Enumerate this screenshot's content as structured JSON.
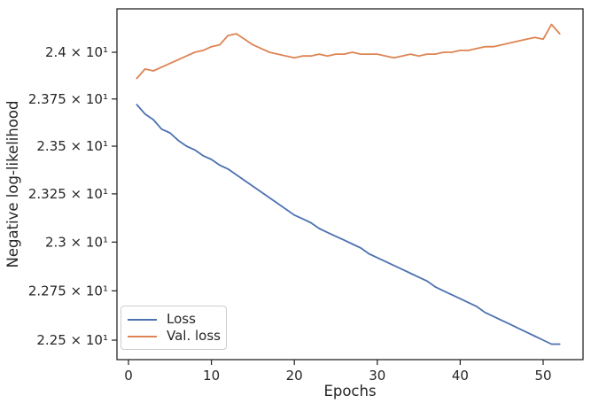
{
  "chart_data": {
    "type": "line",
    "title": "",
    "xlabel": "Epochs",
    "ylabel": "Negative log-likelihood",
    "grid": false,
    "legend_position": "lower left",
    "x_axis": {
      "lim": [
        -1.4,
        54.8
      ],
      "tick_values": [
        0,
        10,
        20,
        30,
        40,
        50
      ],
      "tick_labels": [
        "0",
        "10",
        "20",
        "30",
        "40",
        "50"
      ]
    },
    "y_axis": {
      "scale": "log",
      "lim": [
        22.4,
        24.23
      ],
      "tick_values": [
        24.0,
        23.75,
        23.5,
        23.25,
        23.0,
        22.75,
        22.5
      ],
      "tick_labels": [
        "2.4 × 10¹",
        "2.375 × 10¹",
        "2.35 × 10¹",
        "2.325 × 10¹",
        "2.3 × 10¹",
        "2.275 × 10¹",
        "2.25 × 10¹"
      ]
    },
    "x": [
      1,
      2,
      3,
      4,
      5,
      6,
      7,
      8,
      9,
      10,
      11,
      12,
      13,
      14,
      15,
      16,
      17,
      18,
      19,
      20,
      21,
      22,
      23,
      24,
      25,
      26,
      27,
      28,
      29,
      30,
      31,
      32,
      33,
      34,
      35,
      36,
      37,
      38,
      39,
      40,
      41,
      42,
      43,
      44,
      45,
      46,
      47,
      48,
      49,
      50,
      51,
      52
    ],
    "series": [
      {
        "name": "Loss",
        "color": "#4C72B0",
        "values": [
          23.72,
          23.67,
          23.64,
          23.59,
          23.57,
          23.53,
          23.5,
          23.48,
          23.45,
          23.43,
          23.4,
          23.38,
          23.35,
          23.32,
          23.29,
          23.26,
          23.23,
          23.2,
          23.17,
          23.14,
          23.12,
          23.1,
          23.07,
          23.05,
          23.03,
          23.01,
          22.99,
          22.97,
          22.94,
          22.92,
          22.9,
          22.88,
          22.86,
          22.84,
          22.82,
          22.8,
          22.77,
          22.75,
          22.73,
          22.71,
          22.69,
          22.67,
          22.64,
          22.62,
          22.6,
          22.58,
          22.56,
          22.54,
          22.52,
          22.5,
          22.48,
          22.48
        ]
      },
      {
        "name": "Val. loss",
        "color": "#DD8452",
        "values": [
          23.86,
          23.91,
          23.9,
          23.92,
          23.94,
          23.96,
          23.98,
          24.0,
          24.01,
          24.03,
          24.04,
          24.09,
          24.1,
          24.07,
          24.04,
          24.02,
          24.0,
          23.99,
          23.98,
          23.97,
          23.98,
          23.98,
          23.99,
          23.98,
          23.99,
          23.99,
          24.0,
          23.99,
          23.99,
          23.99,
          23.98,
          23.97,
          23.98,
          23.99,
          23.98,
          23.99,
          23.99,
          24.0,
          24.0,
          24.01,
          24.01,
          24.02,
          24.03,
          24.03,
          24.04,
          24.05,
          24.06,
          24.07,
          24.08,
          24.07,
          24.15,
          24.1
        ]
      }
    ]
  }
}
